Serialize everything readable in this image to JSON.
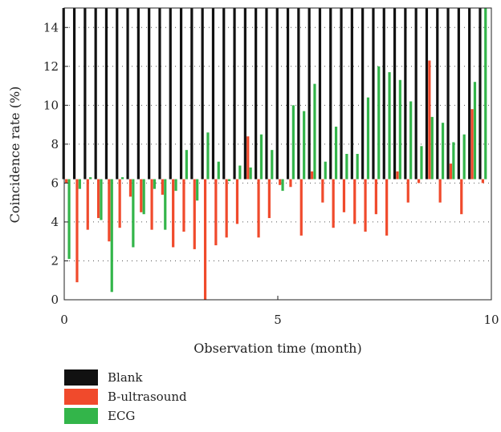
{
  "chart_data": {
    "type": "bar",
    "xlabel": "Observation time (month)",
    "ylabel": "Coincidence rate (%)",
    "xlim": [
      0,
      10
    ],
    "ylim": [
      0,
      15
    ],
    "baseline": 6.2,
    "xticks": [
      0,
      5,
      10
    ],
    "yticks": [
      0,
      2,
      4,
      6,
      8,
      10,
      12,
      14
    ],
    "grid": "dotted-horizontal",
    "legend_position": "bottom",
    "x": [
      0.05,
      0.3,
      0.55,
      0.8,
      1.05,
      1.3,
      1.55,
      1.8,
      2.05,
      2.3,
      2.55,
      2.8,
      3.05,
      3.3,
      3.55,
      3.8,
      4.05,
      4.3,
      4.55,
      4.8,
      5.05,
      5.3,
      5.55,
      5.8,
      6.05,
      6.3,
      6.55,
      6.8,
      7.05,
      7.3,
      7.55,
      7.8,
      8.05,
      8.3,
      8.55,
      8.8,
      9.05,
      9.3,
      9.55,
      9.8
    ],
    "series": [
      {
        "name": "Blank",
        "color": "#111111",
        "values": [
          15,
          15,
          15,
          15,
          15,
          15,
          15,
          15,
          15,
          15,
          15,
          15,
          15,
          15,
          15,
          15,
          15,
          15,
          15,
          15,
          15,
          15,
          15,
          15,
          15,
          15,
          15,
          15,
          15,
          15,
          15,
          15,
          15,
          15,
          15,
          15,
          15,
          15,
          15,
          15
        ]
      },
      {
        "name": "B-ultrasound",
        "color": "#f04a2c",
        "values": [
          6,
          0.9,
          3.6,
          4.2,
          3,
          3.7,
          5.3,
          4.5,
          3.6,
          5.4,
          2.7,
          3.5,
          2.6,
          0,
          2.8,
          3.2,
          3.9,
          8.4,
          3.2,
          4.2,
          5.9,
          5.8,
          3.3,
          6.6,
          5,
          3.7,
          4.5,
          3.9,
          3.5,
          4.4,
          3.3,
          6.6,
          5,
          6,
          12.3,
          5,
          7,
          4.4,
          9.8,
          6
        ]
      },
      {
        "name": "ECG",
        "color": "#33b54a",
        "values": [
          2.1,
          5.7,
          6.3,
          4.1,
          0.4,
          6.3,
          2.7,
          4.4,
          5.7,
          3.6,
          5.6,
          7.7,
          5.1,
          8.6,
          7.1,
          6.1,
          6.9,
          6.8,
          8.5,
          7.7,
          5.6,
          10,
          9.7,
          11.1,
          7.1,
          8.9,
          7.5,
          7.5,
          10.4,
          12,
          11.7,
          11.3,
          10.2,
          7.9,
          9.4,
          9.1,
          8.1,
          8.5,
          11.2,
          15
        ]
      }
    ]
  },
  "legend": [
    {
      "label": "Blank",
      "color": "#111111"
    },
    {
      "label": "B-ultrasound",
      "color": "#f04a2c"
    },
    {
      "label": "ECG",
      "color": "#33b54a"
    }
  ]
}
